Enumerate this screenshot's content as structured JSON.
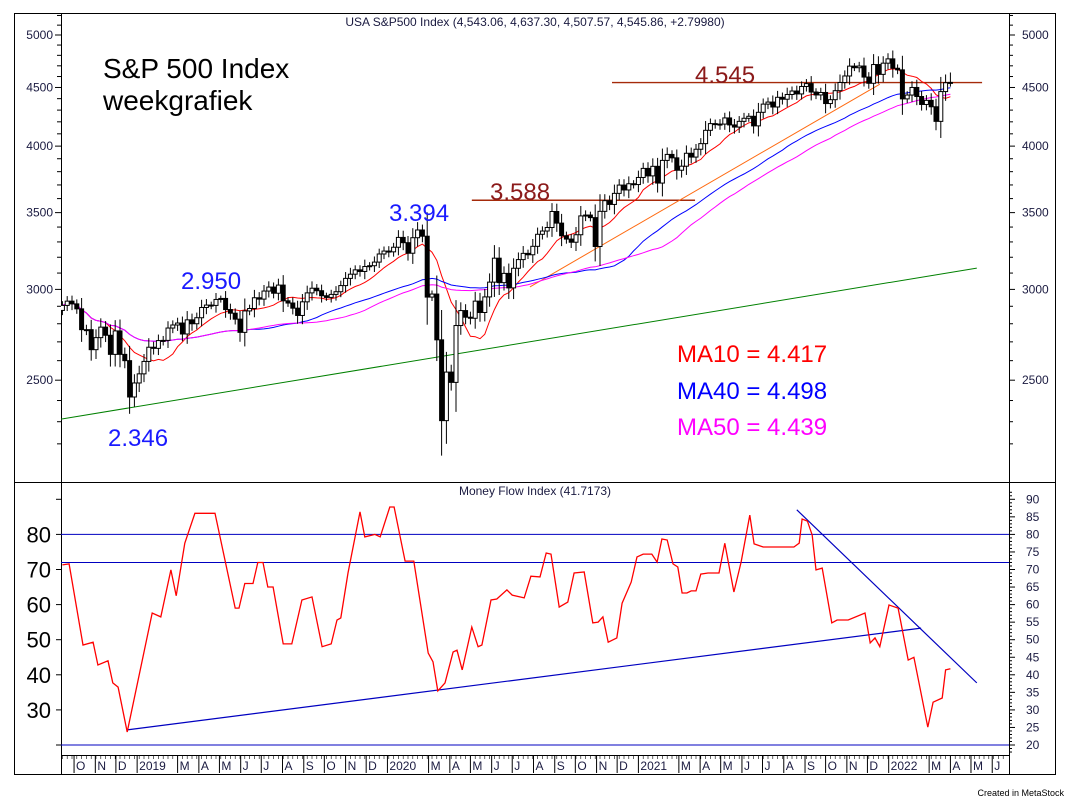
{
  "title": "USA S&P500 Index (4,543.06, 4,637.30, 4,507.57, 4,545.86, +2.79980)",
  "annotations": {
    "heading1": "S&P 500 Index",
    "heading2": "weekgrafiek",
    "high_2019": "2.950",
    "high_2020": "3.394",
    "low_2018": "2.346",
    "level_3588": "3.588",
    "level_4545": "4.545",
    "ma10": "MA10 = 4.417",
    "ma40": "MA40 = 4.498",
    "ma50": "MA50 = 4.439"
  },
  "footer": "Created in MetaStock",
  "colors": {
    "ma10": "#ff0000",
    "ma40": "#0000ff",
    "ma50": "#ff00ff",
    "level": "#a52a0a",
    "label_blue": "#1a1aff",
    "label_red": "#8b1010",
    "label_level": "#8b1a1a",
    "green": "#008000",
    "orange": "#ff6a10",
    "mfi": "#ff0000",
    "mfi_lines": "#0000c0"
  },
  "chart_data": [
    {
      "type": "candlestick",
      "name": "USA S&P500 Index",
      "interval": "week",
      "start_date": "2018-09-14",
      "last_ohlc": {
        "open": 4543.06,
        "high": 4637.3,
        "low": 4507.57,
        "close": 4545.86,
        "change": 2.7998
      },
      "closes": [
        2905,
        2930,
        2914,
        2885,
        2767,
        2767,
        2658,
        2723,
        2781,
        2736,
        2633,
        2760,
        2633,
        2600,
        2417,
        2486,
        2532,
        2596,
        2671,
        2665,
        2707,
        2708,
        2776,
        2793,
        2804,
        2743,
        2822,
        2800,
        2834,
        2893,
        2907,
        2905,
        2940,
        2946,
        2881,
        2860,
        2826,
        2752,
        2873,
        2887,
        2950,
        2942,
        2990,
        3014,
        2977,
        3026,
        2932,
        2919,
        2889,
        2847,
        2926,
        2979,
        3007,
        2992,
        2962,
        2952,
        2970,
        2986,
        3023,
        3067,
        3093,
        3120,
        3110,
        3141,
        3146,
        3169,
        3221,
        3240,
        3235,
        3265,
        3330,
        3295,
        3226,
        3328,
        3380,
        3338,
        2954,
        2972,
        2711,
        2305,
        2541,
        2489,
        2790,
        2875,
        2837,
        2831,
        2930,
        2864,
        2955,
        3044,
        3194,
        3041,
        3098,
        3009,
        3130,
        3185,
        3225,
        3216,
        3271,
        3351,
        3373,
        3397,
        3508,
        3427,
        3341,
        3319,
        3298,
        3348,
        3477,
        3483,
        3465,
        3270,
        3509,
        3585,
        3558,
        3638,
        3699,
        3663,
        3709,
        3703,
        3756,
        3825,
        3768,
        3841,
        3714,
        3887,
        3934,
        3907,
        3811,
        3842,
        3943,
        3913,
        3975,
        4020,
        4129,
        4185,
        4180,
        4181,
        4233,
        4174,
        4156,
        4204,
        4230,
        4247,
        4166,
        4281,
        4352,
        4370,
        4327,
        4412,
        4395,
        4437,
        4468,
        4442,
        4509,
        4535,
        4459,
        4433,
        4455,
        4357,
        4391,
        4471,
        4545,
        4605,
        4697,
        4682,
        4698,
        4595,
        4538,
        4712,
        4620,
        4725,
        4766,
        4677,
        4662,
        4398,
        4432,
        4500,
        4419,
        4349,
        4385,
        4329,
        4204,
        4463,
        4543,
        4546
      ],
      "y_scale": "log",
      "y_range": [
        2150,
        5250
      ],
      "y_ticks": [
        2500,
        3000,
        3500,
        4000,
        4500,
        5000
      ],
      "moving_averages": [
        {
          "name": "MA10",
          "period": 10,
          "value": 4417
        },
        {
          "name": "MA40",
          "period": 40,
          "value": 4498
        },
        {
          "name": "MA50",
          "period": 50,
          "value": 4439
        }
      ],
      "horizontal_levels": [
        {
          "value": 4545,
          "from_week": 114.5,
          "to_week": 191.6
        },
        {
          "value": 3588,
          "from_week": 85.3,
          "to_week": 131.8
        }
      ],
      "trendlines": [
        {
          "name": "long-term support",
          "from": [
            -0.3,
            2312
          ],
          "to": [
            190.5,
            3131
          ]
        },
        {
          "name": "uptrend",
          "from": [
            97.4,
            3015
          ],
          "to": [
            170.3,
            4530
          ]
        }
      ]
    },
    {
      "type": "line",
      "title": "Money Flow Index (41.7173)",
      "x_unit": "weeks since 2018-09-14",
      "points": [
        [
          0,
          71.3
        ],
        [
          1.4,
          71.6
        ],
        [
          4.3,
          48.5
        ],
        [
          6.4,
          49.3
        ],
        [
          7.4,
          42.8
        ],
        [
          9.5,
          44
        ],
        [
          10.5,
          37.7
        ],
        [
          11.6,
          36.5
        ],
        [
          13.5,
          23.7
        ],
        [
          18.7,
          57.6
        ],
        [
          20.5,
          56.5
        ],
        [
          22.6,
          69.9
        ],
        [
          23.7,
          62.5
        ],
        [
          25.5,
          77.5
        ],
        [
          27.6,
          86
        ],
        [
          31.8,
          86
        ],
        [
          36,
          59
        ],
        [
          36.8,
          59
        ],
        [
          38,
          66
        ],
        [
          39.7,
          66
        ],
        [
          40.7,
          72
        ],
        [
          41.8,
          72
        ],
        [
          42.8,
          65
        ],
        [
          43.9,
          65
        ],
        [
          46,
          48.8
        ],
        [
          47.8,
          48.8
        ],
        [
          49.9,
          61.3
        ],
        [
          52,
          62.2
        ],
        [
          54.1,
          48
        ],
        [
          56,
          48.8
        ],
        [
          57.2,
          55.6
        ],
        [
          58,
          56.2
        ],
        [
          59.5,
          69
        ],
        [
          62,
          86.4
        ],
        [
          63,
          79.3
        ],
        [
          65.1,
          80
        ],
        [
          66.2,
          79.3
        ],
        [
          68.2,
          87.8
        ],
        [
          69.1,
          87.8
        ],
        [
          71.4,
          72.4
        ],
        [
          73.2,
          72.4
        ],
        [
          76.2,
          46.2
        ],
        [
          77.2,
          43.7
        ],
        [
          78.2,
          35.4
        ],
        [
          79.7,
          37.7
        ],
        [
          81.4,
          46.5
        ],
        [
          82.2,
          47
        ],
        [
          83.3,
          41.4
        ],
        [
          85.3,
          53.6
        ],
        [
          86.6,
          48
        ],
        [
          87.4,
          48.5
        ],
        [
          89.3,
          61.3
        ],
        [
          90.5,
          61.6
        ],
        [
          92.6,
          64.2
        ],
        [
          93.7,
          62.7
        ],
        [
          96.2,
          61.9
        ],
        [
          97.6,
          68.1
        ],
        [
          99.5,
          67.9
        ],
        [
          100.8,
          74.7
        ],
        [
          101.8,
          74.4
        ],
        [
          103.5,
          59.3
        ],
        [
          105.3,
          60.7
        ],
        [
          106.6,
          69
        ],
        [
          108.7,
          69.3
        ],
        [
          110.5,
          54.8
        ],
        [
          111.6,
          55
        ],
        [
          112.6,
          56.5
        ],
        [
          113.7,
          49.3
        ],
        [
          115.5,
          50.5
        ],
        [
          116.6,
          60.4
        ],
        [
          118.5,
          66.4
        ],
        [
          119.7,
          73.6
        ],
        [
          121,
          74.4
        ],
        [
          122.8,
          74.4
        ],
        [
          123.9,
          72.1
        ],
        [
          124.9,
          78.7
        ],
        [
          126,
          78.4
        ],
        [
          127.2,
          71.6
        ],
        [
          128.2,
          70.7
        ],
        [
          129.1,
          63.3
        ],
        [
          130.1,
          63.3
        ],
        [
          131,
          63.9
        ],
        [
          132,
          63.9
        ],
        [
          133,
          68.7
        ],
        [
          134.5,
          69
        ],
        [
          136.8,
          69
        ],
        [
          138,
          77.5
        ],
        [
          139.9,
          63.6
        ],
        [
          141.4,
          72.1
        ],
        [
          143.2,
          85.5
        ],
        [
          144.1,
          77.3
        ],
        [
          146,
          76.4
        ],
        [
          152.4,
          76.4
        ],
        [
          153.5,
          77.5
        ],
        [
          154.1,
          84.4
        ],
        [
          155.2,
          83.8
        ],
        [
          156.2,
          79.8
        ],
        [
          157,
          69.9
        ],
        [
          158.3,
          70.4
        ],
        [
          160.3,
          54.8
        ],
        [
          161.4,
          55.6
        ],
        [
          163.7,
          55.6
        ],
        [
          167.2,
          57.6
        ],
        [
          168.3,
          49.1
        ],
        [
          169.3,
          50.5
        ],
        [
          170.3,
          48
        ],
        [
          172.2,
          59.9
        ],
        [
          174.1,
          59
        ],
        [
          176.2,
          44.2
        ],
        [
          177.4,
          45
        ],
        [
          180.3,
          25.1
        ],
        [
          181.4,
          32.2
        ],
        [
          183.3,
          33.4
        ],
        [
          184,
          41.4
        ],
        [
          185,
          41.7173
        ]
      ],
      "y_range": [
        15,
        93
      ],
      "levels": [
        80,
        72,
        20
      ],
      "y_ticks_left": [
        30,
        40,
        50,
        60,
        70,
        80
      ],
      "y_ticks_right": [
        20,
        25,
        30,
        35,
        40,
        45,
        50,
        55,
        60,
        65,
        70,
        75,
        80,
        85,
        90
      ],
      "trendlines": [
        {
          "name": "support",
          "from": [
            13.5,
            24.3
          ],
          "to": [
            178.9,
            53.3
          ]
        },
        {
          "name": "downtrend",
          "from": [
            153,
            87
          ],
          "to": [
            190.5,
            37.7
          ]
        }
      ]
    }
  ],
  "x_axis": [
    {
      "label": "O",
      "date": "2018-10-01"
    },
    {
      "label": "N",
      "date": "2018-11-01"
    },
    {
      "label": "D",
      "date": "2018-12-01"
    },
    {
      "label": "2019",
      "date": "2019-01-01"
    },
    {
      "label": "M",
      "date": "2019-03-01"
    },
    {
      "label": "A",
      "date": "2019-04-01"
    },
    {
      "label": "M",
      "date": "2019-05-01"
    },
    {
      "label": "J",
      "date": "2019-06-01"
    },
    {
      "label": "J",
      "date": "2019-07-01"
    },
    {
      "label": "A",
      "date": "2019-08-01"
    },
    {
      "label": "S",
      "date": "2019-09-01"
    },
    {
      "label": "O",
      "date": "2019-10-01"
    },
    {
      "label": "N",
      "date": "2019-11-01"
    },
    {
      "label": "D",
      "date": "2019-12-01"
    },
    {
      "label": "2020",
      "date": "2020-01-01"
    },
    {
      "label": "M",
      "date": "2020-03-01"
    },
    {
      "label": "A",
      "date": "2020-04-01"
    },
    {
      "label": "M",
      "date": "2020-05-01"
    },
    {
      "label": "J",
      "date": "2020-06-01"
    },
    {
      "label": "J",
      "date": "2020-07-01"
    },
    {
      "label": "A",
      "date": "2020-08-01"
    },
    {
      "label": "S",
      "date": "2020-09-01"
    },
    {
      "label": "O",
      "date": "2020-10-01"
    },
    {
      "label": "N",
      "date": "2020-11-01"
    },
    {
      "label": "D",
      "date": "2020-12-01"
    },
    {
      "label": "2021",
      "date": "2021-01-01"
    },
    {
      "label": "M",
      "date": "2021-03-01"
    },
    {
      "label": "A",
      "date": "2021-04-01"
    },
    {
      "label": "M",
      "date": "2021-05-01"
    },
    {
      "label": "J",
      "date": "2021-06-01"
    },
    {
      "label": "J",
      "date": "2021-07-01"
    },
    {
      "label": "A",
      "date": "2021-08-01"
    },
    {
      "label": "S",
      "date": "2021-09-01"
    },
    {
      "label": "O",
      "date": "2021-10-01"
    },
    {
      "label": "N",
      "date": "2021-11-01"
    },
    {
      "label": "D",
      "date": "2021-12-01"
    },
    {
      "label": "2022",
      "date": "2022-01-01"
    },
    {
      "label": "M",
      "date": "2022-03-01"
    },
    {
      "label": "A",
      "date": "2022-04-01"
    },
    {
      "label": "M",
      "date": "2022-05-01"
    },
    {
      "label": "J",
      "date": "2022-06-01"
    }
  ]
}
